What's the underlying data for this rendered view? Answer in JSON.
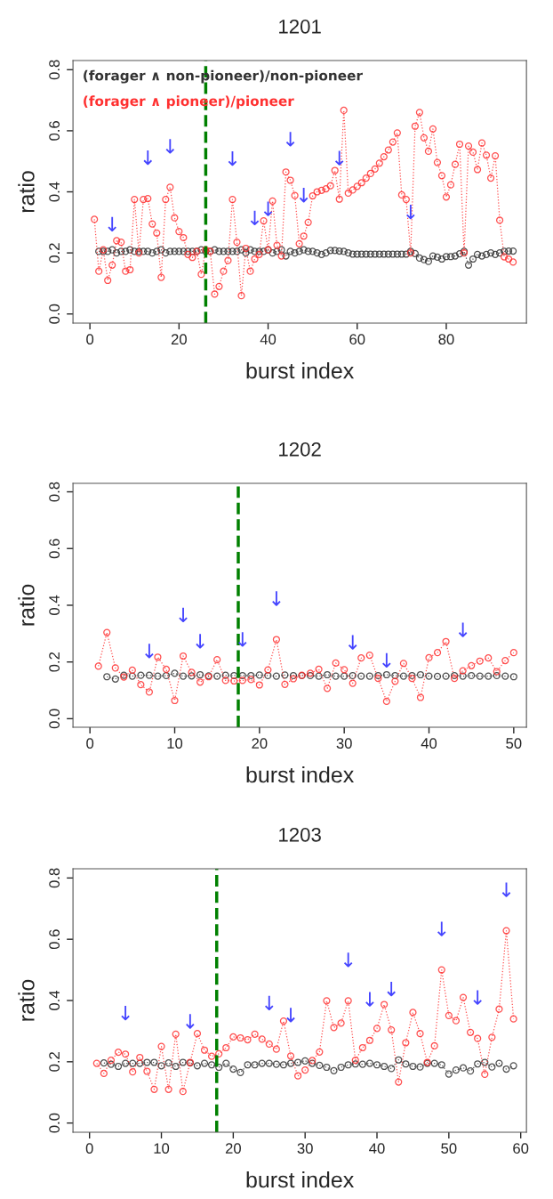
{
  "chart_data": [
    {
      "type": "line",
      "title": "1201",
      "xlabel": "burst index",
      "ylabel": "ratio",
      "x": [
        1,
        2,
        3,
        4,
        5,
        6,
        7,
        8,
        9,
        10,
        11,
        12,
        13,
        14,
        15,
        16,
        17,
        18,
        19,
        20,
        21,
        22,
        23,
        24,
        25,
        26,
        27,
        28,
        29,
        30,
        31,
        32,
        33,
        34,
        35,
        36,
        37,
        38,
        39,
        40,
        41,
        42,
        43,
        44,
        45,
        46,
        47,
        48,
        49,
        50,
        51,
        52,
        53,
        54,
        55,
        56,
        57,
        58,
        59,
        60,
        61,
        62,
        63,
        64,
        65,
        66,
        67,
        68,
        69,
        70,
        71,
        72,
        73,
        74,
        75,
        76,
        77,
        78,
        79,
        80,
        81,
        82,
        83,
        84,
        85,
        86,
        87,
        88,
        89,
        90,
        91,
        92,
        93,
        94,
        95
      ],
      "series": [
        {
          "name": "(forager ∧ non-pioneer)/non-pioneer",
          "color": "#333333",
          "values": [
            null,
            0.205,
            0.205,
            0.205,
            0.21,
            0.2,
            0.205,
            0.205,
            0.21,
            0.205,
            0.205,
            0.205,
            0.205,
            0.2,
            0.205,
            0.21,
            0.2,
            0.205,
            0.205,
            0.205,
            0.205,
            0.205,
            0.205,
            0.205,
            0.21,
            0.205,
            0.205,
            0.21,
            0.205,
            0.205,
            0.205,
            0.205,
            0.205,
            0.21,
            0.2,
            0.21,
            0.205,
            0.205,
            0.205,
            0.21,
            0.2,
            0.205,
            0.21,
            0.19,
            0.205,
            0.2,
            0.205,
            0.21,
            0.205,
            0.205,
            0.2,
            0.195,
            0.2,
            0.208,
            0.208,
            0.206,
            0.205,
            0.2,
            0.196,
            0.196,
            0.196,
            0.196,
            0.196,
            0.196,
            0.196,
            0.196,
            0.196,
            0.196,
            0.196,
            0.196,
            0.196,
            0.205,
            0.198,
            0.183,
            0.178,
            0.172,
            0.19,
            0.186,
            0.18,
            0.188,
            0.188,
            0.19,
            0.197,
            0.205,
            0.16,
            0.18,
            0.195,
            0.19,
            0.195,
            0.2,
            0.195,
            0.2,
            0.205,
            0.206,
            0.206
          ]
        },
        {
          "name": "(forager ∧ pioneer)/pioneer",
          "color": "#ff3030",
          "values": [
            0.31,
            0.14,
            0.21,
            0.11,
            0.16,
            0.24,
            0.235,
            0.14,
            0.145,
            0.375,
            0.2,
            0.375,
            0.378,
            0.295,
            0.265,
            0.12,
            0.375,
            0.415,
            0.315,
            0.27,
            0.25,
            0.195,
            0.185,
            0.205,
            0.13,
            0.21,
            0.205,
            0.065,
            0.09,
            0.14,
            0.175,
            0.375,
            0.235,
            0.06,
            0.215,
            0.14,
            0.18,
            0.195,
            0.305,
            0.21,
            0.37,
            0.225,
            0.19,
            0.465,
            0.438,
            0.388,
            0.23,
            0.255,
            0.3,
            0.387,
            0.4,
            0.405,
            0.41,
            0.42,
            0.47,
            0.376,
            0.667,
            0.396,
            0.406,
            0.418,
            0.43,
            0.445,
            0.46,
            0.475,
            0.494,
            0.515,
            0.537,
            0.563,
            0.593,
            0.39,
            0.375,
            0.2,
            0.615,
            0.66,
            0.577,
            0.533,
            0.606,
            0.496,
            0.453,
            0.383,
            0.423,
            0.49,
            0.556,
            0.2,
            0.55,
            0.53,
            0.473,
            0.56,
            0.52,
            0.445,
            0.518,
            0.307,
            0.187,
            0.18,
            0.17
          ]
        }
      ],
      "xlim": [
        -3.8,
        98
      ],
      "xticks": [
        0,
        20,
        40,
        60,
        80
      ],
      "ylim": [
        -0.03,
        0.83
      ],
      "yticks": [
        {
          "value": 0,
          "label": "0.0"
        },
        {
          "value": 0.2,
          "label": "0.2"
        },
        {
          "value": 0.4,
          "label": "0.4"
        },
        {
          "value": 0.6,
          "label": "0.6"
        },
        {
          "value": 0.8,
          "label": "0.8"
        }
      ],
      "ref_lines": [
        {
          "axis": "x",
          "value": 26,
          "color": "#008000",
          "line_style": "dashed"
        }
      ],
      "annotations": [
        {
          "text": "↓",
          "x": 5,
          "y": 0.16
        },
        {
          "text": "↓",
          "x": 13,
          "y": 0.378
        },
        {
          "text": "↓",
          "x": 18,
          "y": 0.415
        },
        {
          "text": "↓",
          "x": 32,
          "y": 0.375
        },
        {
          "text": "↓",
          "x": 37,
          "y": 0.18
        },
        {
          "text": "↓",
          "x": 40,
          "y": 0.21
        },
        {
          "text": "↓",
          "x": 45,
          "y": 0.438
        },
        {
          "text": "↓",
          "x": 48,
          "y": 0.255
        },
        {
          "text": "↓",
          "x": 56,
          "y": 0.376
        },
        {
          "text": "↓",
          "x": 72,
          "y": 0.2
        }
      ],
      "marker": "circle",
      "line_style": "dotted",
      "grid": false,
      "legend": "top left"
    },
    {
      "type": "line",
      "title": "1202",
      "xlabel": "burst index",
      "ylabel": "ratio",
      "x": [
        1,
        2,
        3,
        4,
        5,
        6,
        7,
        8,
        9,
        10,
        11,
        12,
        13,
        14,
        15,
        16,
        17,
        18,
        19,
        20,
        21,
        22,
        23,
        24,
        25,
        26,
        27,
        28,
        29,
        30,
        31,
        32,
        33,
        34,
        35,
        36,
        37,
        38,
        39,
        40,
        41,
        42,
        43,
        44,
        45,
        46,
        47,
        48,
        49,
        50
      ],
      "series": [
        {
          "color": "#333333",
          "values": [
            null,
            0.148,
            0.14,
            0.153,
            0.15,
            0.153,
            0.153,
            0.15,
            0.152,
            0.16,
            0.15,
            0.151,
            0.155,
            0.151,
            0.15,
            0.153,
            0.152,
            0.152,
            0.152,
            0.154,
            0.152,
            0.15,
            0.154,
            0.152,
            0.152,
            0.152,
            0.15,
            0.155,
            0.15,
            0.15,
            0.152,
            0.15,
            0.15,
            0.152,
            0.155,
            0.152,
            0.15,
            0.152,
            0.155,
            0.15,
            0.149,
            0.15,
            0.152,
            0.15,
            0.152,
            0.15,
            0.15,
            0.152,
            0.15,
            0.148
          ]
        },
        {
          "color": "#ff3030",
          "values": [
            0.185,
            0.304,
            0.179,
            0.147,
            0.171,
            0.12,
            0.094,
            0.217,
            0.174,
            0.064,
            0.221,
            0.163,
            0.129,
            0.148,
            0.208,
            0.135,
            0.133,
            0.135,
            0.138,
            0.119,
            0.172,
            0.279,
            0.121,
            0.141,
            0.153,
            0.16,
            0.174,
            0.107,
            0.196,
            0.173,
            0.125,
            0.214,
            0.224,
            0.142,
            0.061,
            0.132,
            0.195,
            0.142,
            0.075,
            0.215,
            0.233,
            0.272,
            0.142,
            0.169,
            0.187,
            0.203,
            0.214,
            0.166,
            0.205,
            0.233
          ]
        }
      ],
      "xlim": [
        -2,
        51.5
      ],
      "xticks": [
        0,
        10,
        20,
        30,
        40,
        50
      ],
      "ylim": [
        -0.03,
        0.83
      ],
      "yticks": [
        {
          "value": 0,
          "label": "0.0"
        },
        {
          "value": 0.2,
          "label": "0.2"
        },
        {
          "value": 0.4,
          "label": "0.4"
        },
        {
          "value": 0.6,
          "label": "0.6"
        },
        {
          "value": 0.8,
          "label": "0.8"
        }
      ],
      "ref_lines": [
        {
          "axis": "x",
          "value": 17.5,
          "color": "#008000",
          "line_style": "dashed"
        }
      ],
      "annotations": [
        {
          "text": "↓",
          "x": 7,
          "y": 0.094
        },
        {
          "text": "↓",
          "x": 11,
          "y": 0.221
        },
        {
          "text": "↓",
          "x": 13,
          "y": 0.129
        },
        {
          "text": "↓",
          "x": 18,
          "y": 0.135
        },
        {
          "text": "↓",
          "x": 22,
          "y": 0.279
        },
        {
          "text": "↓",
          "x": 31,
          "y": 0.125
        },
        {
          "text": "↓",
          "x": 35,
          "y": 0.061
        },
        {
          "text": "↓",
          "x": 44,
          "y": 0.169
        }
      ],
      "marker": "circle",
      "line_style": "dotted",
      "grid": false
    },
    {
      "type": "line",
      "title": "1203",
      "xlabel": "burst index",
      "ylabel": "ratio",
      "x": [
        1,
        2,
        3,
        4,
        5,
        6,
        7,
        8,
        9,
        10,
        11,
        12,
        13,
        14,
        15,
        16,
        17,
        18,
        19,
        20,
        21,
        22,
        23,
        24,
        25,
        26,
        27,
        28,
        29,
        30,
        31,
        32,
        33,
        34,
        35,
        36,
        37,
        38,
        39,
        40,
        41,
        42,
        43,
        44,
        45,
        46,
        47,
        48,
        49,
        50,
        51,
        52,
        53,
        54,
        55,
        56,
        57,
        58,
        59
      ],
      "series": [
        {
          "color": "#333333",
          "values": [
            null,
            0.196,
            0.192,
            0.185,
            0.195,
            0.195,
            0.195,
            0.198,
            0.198,
            0.187,
            0.196,
            0.185,
            0.198,
            0.196,
            0.187,
            0.195,
            0.19,
            0.182,
            0.195,
            0.176,
            0.165,
            0.19,
            0.19,
            0.195,
            0.195,
            0.192,
            0.19,
            0.195,
            0.198,
            0.203,
            0.195,
            0.188,
            0.182,
            0.171,
            0.182,
            0.19,
            0.193,
            0.192,
            0.195,
            0.19,
            0.185,
            0.178,
            0.206,
            0.193,
            0.185,
            0.183,
            0.195,
            0.195,
            0.19,
            0.16,
            0.173,
            0.18,
            0.17,
            0.193,
            0.198,
            0.183,
            0.195,
            0.176,
            0.187
          ]
        },
        {
          "color": "#ff3030",
          "values": [
            0.195,
            0.162,
            0.205,
            0.231,
            0.225,
            0.167,
            0.214,
            0.169,
            0.11,
            0.25,
            0.11,
            0.29,
            0.103,
            0.198,
            0.292,
            0.238,
            0.218,
            0.226,
            0.246,
            0.281,
            0.278,
            0.272,
            0.29,
            0.274,
            0.258,
            0.241,
            0.333,
            0.219,
            0.154,
            0.173,
            0.204,
            0.232,
            0.399,
            0.312,
            0.326,
            0.399,
            0.205,
            0.246,
            0.27,
            0.309,
            0.387,
            0.304,
            0.134,
            0.262,
            0.361,
            0.292,
            0.198,
            0.252,
            0.5,
            0.351,
            0.334,
            0.41,
            0.296,
            0.276,
            0.159,
            0.28,
            0.372,
            0.628,
            0.34
          ]
        }
      ],
      "xlim": [
        -2.3,
        60.8
      ],
      "xticks": [
        0,
        10,
        20,
        30,
        40,
        50,
        60
      ],
      "ylim": [
        -0.03,
        0.83
      ],
      "yticks": [
        {
          "value": 0,
          "label": "0.0"
        },
        {
          "value": 0.2,
          "label": "0.2"
        },
        {
          "value": 0.4,
          "label": "0.4"
        },
        {
          "value": 0.6,
          "label": "0.6"
        },
        {
          "value": 0.8,
          "label": "0.8"
        }
      ],
      "ref_lines": [
        {
          "axis": "x",
          "value": 17.7,
          "color": "#008000",
          "line_style": "dashed"
        }
      ],
      "annotations": [
        {
          "text": "↓",
          "x": 5,
          "y": 0.225
        },
        {
          "text": "↓",
          "x": 14,
          "y": 0.198
        },
        {
          "text": "↓",
          "x": 25,
          "y": 0.258
        },
        {
          "text": "↓",
          "x": 28,
          "y": 0.219
        },
        {
          "text": "↓",
          "x": 36,
          "y": 0.399
        },
        {
          "text": "↓",
          "x": 39,
          "y": 0.27
        },
        {
          "text": "↓",
          "x": 42,
          "y": 0.304
        },
        {
          "text": "↓",
          "x": 49,
          "y": 0.5
        },
        {
          "text": "↓",
          "x": 54,
          "y": 0.276
        },
        {
          "text": "↓",
          "x": 58,
          "y": 0.628
        }
      ],
      "marker": "circle",
      "line_style": "dotted",
      "grid": false
    }
  ]
}
